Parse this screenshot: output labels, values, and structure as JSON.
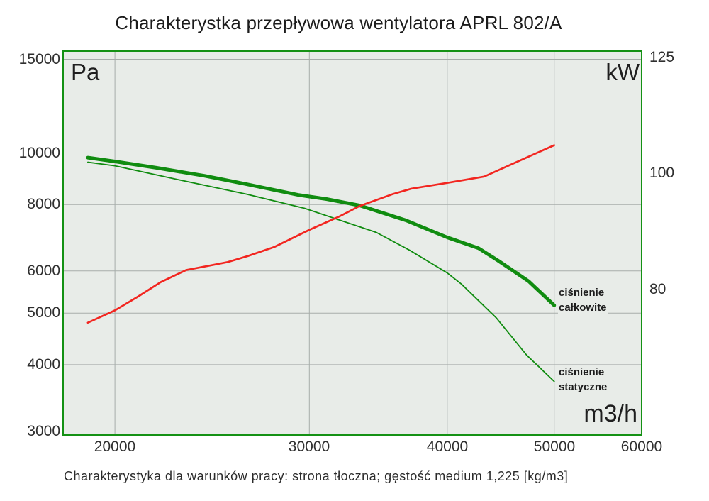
{
  "title": "Charakterystka przepływowa wentylatora APRL 802/A",
  "caption": "Charakterystyka dla warunków pracy: strona tłoczna; gęstość medium 1,225 [kg/m3]",
  "axes": {
    "left_unit": "Pa",
    "right_unit": "kW",
    "x_unit": "m3/h",
    "left_ticks": [
      "15000",
      "10000",
      "8000",
      "6000",
      "5000",
      "4000",
      "3000"
    ],
    "right_ticks": [
      "125",
      "100",
      "80"
    ],
    "x_ticks": [
      "20000",
      "30000",
      "40000",
      "50000",
      "60000"
    ]
  },
  "series_labels": {
    "total": [
      "ciśnienie",
      "całkowite"
    ],
    "static": [
      "ciśnienie",
      "statyczne"
    ]
  },
  "colors": {
    "plot_bg": "#e8ece8",
    "grid": "#a7adaa",
    "border_green": "#149114",
    "curve_green": "#108c10",
    "power_red": "#f22620"
  },
  "chart_data": {
    "type": "line",
    "title": "Charakterystka przepływowa wentylatora APRL 802/A",
    "grid": true,
    "legend_position": "inline-right",
    "x_axis": {
      "label": "m3/h",
      "scale": "log",
      "min": 17950,
      "max": 60000,
      "ticks": [
        20000,
        30000,
        40000,
        50000,
        60000
      ]
    },
    "y_left": {
      "label": "Pa",
      "scale": "log",
      "min": 2950,
      "max": 15540,
      "ticks": [
        15000,
        10000,
        8000,
        6000,
        5000,
        4000,
        3000
      ]
    },
    "y_right": {
      "label": "kW",
      "scale": "log",
      "min": 60.4,
      "max": 126.6,
      "ticks": [
        125,
        100,
        80
      ]
    },
    "series": [
      {
        "name": "ciśnienie całkowite",
        "axis": "left",
        "unit": "Pa",
        "color": "#108c10",
        "stroke_width": 5,
        "points": [
          [
            18900,
            9800
          ],
          [
            20000,
            9640
          ],
          [
            21800,
            9380
          ],
          [
            24100,
            9060
          ],
          [
            26300,
            8740
          ],
          [
            29300,
            8340
          ],
          [
            31100,
            8190
          ],
          [
            33300,
            7970
          ],
          [
            36700,
            7470
          ],
          [
            40000,
            6940
          ],
          [
            42700,
            6620
          ],
          [
            44500,
            6270
          ],
          [
            47400,
            5740
          ],
          [
            50000,
            5170
          ]
        ]
      },
      {
        "name": "ciśnienie statyczne",
        "axis": "left",
        "unit": "Pa",
        "color": "#108c10",
        "stroke_width": 1.8,
        "points": [
          [
            18900,
            9610
          ],
          [
            20000,
            9460
          ],
          [
            22700,
            8930
          ],
          [
            26300,
            8370
          ],
          [
            29700,
            7870
          ],
          [
            34500,
            7090
          ],
          [
            37000,
            6560
          ],
          [
            40000,
            5950
          ],
          [
            41200,
            5670
          ],
          [
            44300,
            4900
          ],
          [
            47200,
            4170
          ],
          [
            50000,
            3720
          ]
        ]
      },
      {
        "name": "power-kW",
        "axis": "right",
        "unit": "kW",
        "color": "#f22620",
        "stroke_width": 2.7,
        "points": [
          [
            18900,
            75.0
          ],
          [
            20000,
            76.8
          ],
          [
            21000,
            78.9
          ],
          [
            22000,
            81.1
          ],
          [
            23200,
            83.0
          ],
          [
            24500,
            83.8
          ],
          [
            25300,
            84.3
          ],
          [
            26400,
            85.3
          ],
          [
            27900,
            86.8
          ],
          [
            30000,
            89.7
          ],
          [
            31900,
            92.0
          ],
          [
            33300,
            93.9
          ],
          [
            35700,
            96.1
          ],
          [
            37100,
            97.1
          ],
          [
            40000,
            98.2
          ],
          [
            43200,
            99.4
          ],
          [
            46400,
            102.4
          ],
          [
            50000,
            105.6
          ]
        ]
      }
    ]
  }
}
